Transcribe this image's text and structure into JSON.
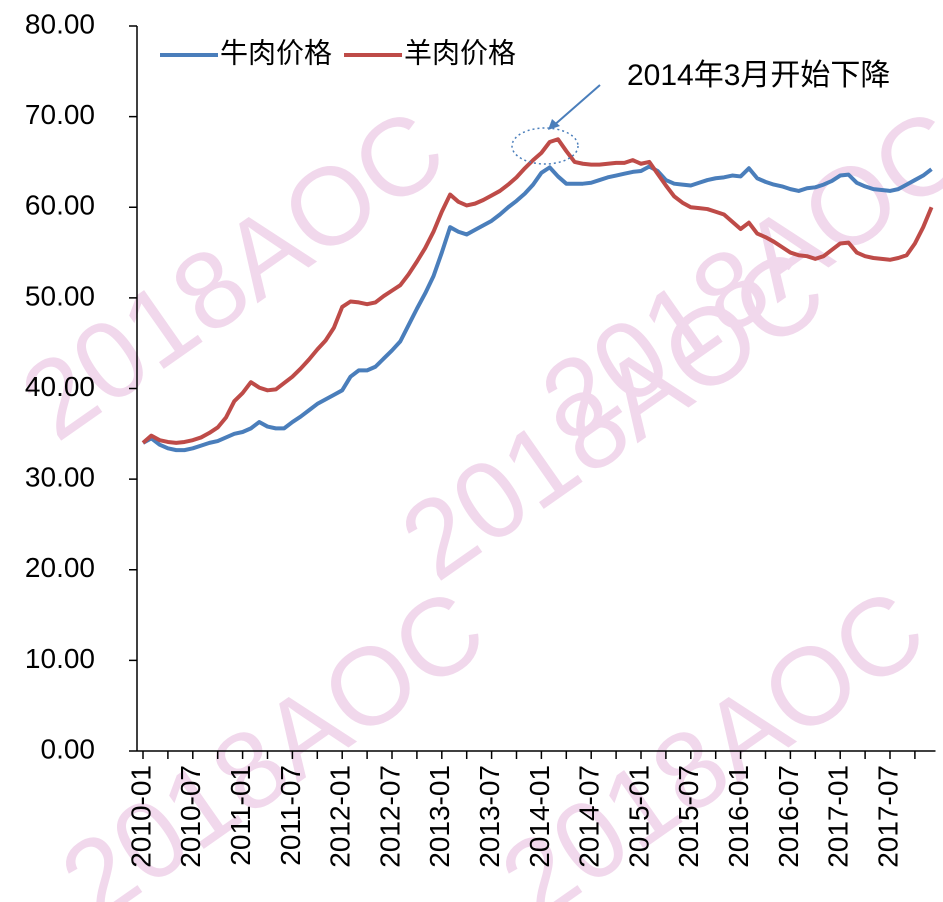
{
  "chart_data": {
    "type": "line",
    "watermark": "2018AOC",
    "annotation": "2014年3月开始下降",
    "categories": [
      "2010-01",
      null,
      null,
      null,
      null,
      null,
      "2010-07",
      null,
      null,
      null,
      null,
      null,
      "2011-01",
      null,
      null,
      null,
      null,
      null,
      "2011-07",
      null,
      null,
      null,
      null,
      null,
      "2012-01",
      null,
      null,
      null,
      null,
      null,
      "2012-07",
      null,
      null,
      null,
      null,
      null,
      "2013-01",
      null,
      null,
      null,
      null,
      null,
      "2013-07",
      null,
      null,
      null,
      null,
      null,
      "2014-01",
      null,
      null,
      null,
      null,
      null,
      "2014-07",
      null,
      null,
      null,
      null,
      null,
      "2015-01",
      null,
      null,
      null,
      null,
      null,
      "2015-07",
      null,
      null,
      null,
      null,
      null,
      "2016-01",
      null,
      null,
      null,
      null,
      null,
      "2016-07",
      null,
      null,
      null,
      null,
      null,
      "2017-01",
      null,
      null,
      null,
      null,
      null,
      "2017-07",
      null,
      null,
      null,
      null,
      null
    ],
    "series": [
      {
        "name": "牛肉价格",
        "color": "#4a7ebb",
        "values": [
          34.0,
          34.5,
          33.8,
          33.4,
          33.2,
          33.2,
          33.4,
          33.7,
          34.0,
          34.2,
          34.6,
          35.0,
          35.2,
          35.6,
          36.3,
          35.8,
          35.6,
          35.6,
          36.3,
          36.9,
          37.6,
          38.3,
          38.8,
          39.3,
          39.8,
          41.3,
          42.0,
          42.0,
          42.4,
          43.3,
          44.2,
          45.2,
          47.0,
          48.8,
          50.5,
          52.4,
          55.0,
          57.8,
          57.3,
          57.0,
          57.5,
          58.0,
          58.5,
          59.2,
          60.0,
          60.7,
          61.5,
          62.5,
          63.8,
          64.4,
          63.4,
          62.6,
          62.6,
          62.6,
          62.7,
          63.0,
          63.3,
          63.5,
          63.7,
          63.9,
          64.0,
          64.5,
          64.0,
          63.0,
          62.6,
          62.5,
          62.4,
          62.7,
          63.0,
          63.2,
          63.3,
          63.5,
          63.4,
          64.3,
          63.2,
          62.8,
          62.5,
          62.3,
          62.0,
          61.8,
          62.1,
          62.2,
          62.5,
          62.9,
          63.5,
          63.6,
          62.7,
          62.3,
          62.0,
          61.9,
          61.8,
          62.0,
          62.5,
          63.0,
          63.5,
          64.2
        ]
      },
      {
        "name": "羊肉价格",
        "color": "#be4b48",
        "values": [
          34.0,
          34.8,
          34.3,
          34.1,
          34.0,
          34.1,
          34.3,
          34.6,
          35.1,
          35.7,
          36.8,
          38.6,
          39.5,
          40.7,
          40.1,
          39.8,
          39.9,
          40.6,
          41.3,
          42.2,
          43.2,
          44.3,
          45.3,
          46.7,
          49.0,
          49.6,
          49.5,
          49.3,
          49.5,
          50.2,
          50.8,
          51.4,
          52.6,
          54.0,
          55.5,
          57.3,
          59.5,
          61.4,
          60.6,
          60.2,
          60.4,
          60.8,
          61.3,
          61.8,
          62.5,
          63.3,
          64.3,
          65.2,
          66.0,
          67.2,
          67.5,
          66.2,
          65.0,
          64.8,
          64.7,
          64.7,
          64.8,
          64.9,
          64.9,
          65.2,
          64.8,
          65.0,
          63.7,
          62.4,
          61.2,
          60.5,
          60.0,
          59.9,
          59.8,
          59.5,
          59.2,
          58.4,
          57.6,
          58.3,
          57.1,
          56.7,
          56.2,
          55.6,
          55.0,
          54.7,
          54.6,
          54.3,
          54.6,
          55.3,
          56.0,
          56.1,
          55.0,
          54.6,
          54.4,
          54.3,
          54.2,
          54.4,
          54.7,
          56.0,
          57.8,
          60.0
        ]
      }
    ],
    "ylim": [
      0,
      80
    ],
    "yticks": [
      {
        "value": 0,
        "label": "0.00"
      },
      {
        "value": 10,
        "label": "10.00"
      },
      {
        "value": 20,
        "label": "20.00"
      },
      {
        "value": 30,
        "label": "30.00"
      },
      {
        "value": 40,
        "label": "40.00"
      },
      {
        "value": 50,
        "label": "50.00"
      },
      {
        "value": 60,
        "label": "60.00"
      },
      {
        "value": 70,
        "label": "70.00"
      },
      {
        "value": 80,
        "label": "80.00"
      }
    ],
    "legend": "top-left"
  }
}
